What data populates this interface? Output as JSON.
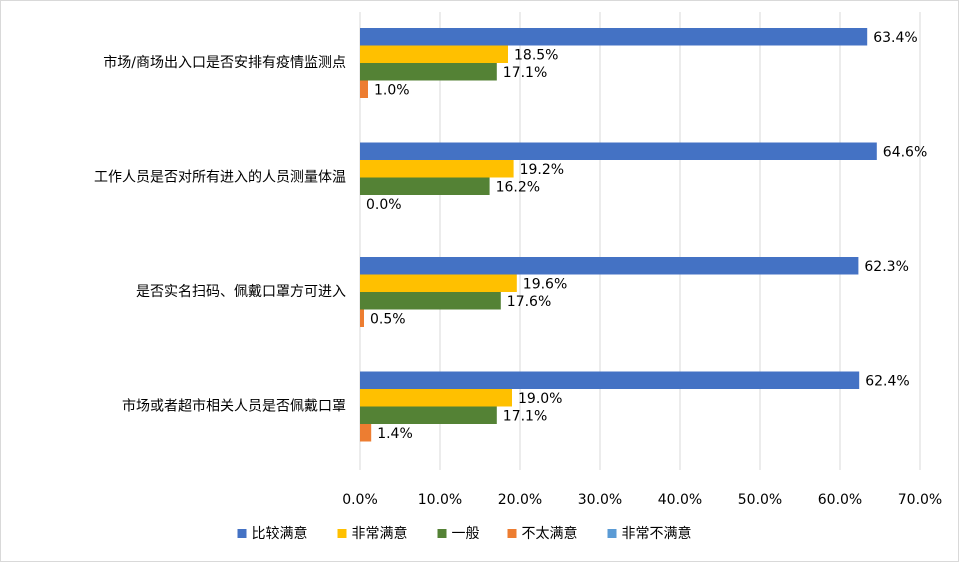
{
  "chart_data": {
    "type": "hbar",
    "categories": [
      "市场/商场出入口是否安排有疫情监测点",
      "工作人员是否对所有进入的人员测量体温",
      "是否实名扫码、佩戴口罩方可进入",
      "市场或者超市相关人员是否佩戴口罩"
    ],
    "series": [
      {
        "name": "比较满意",
        "color": "#4472c4",
        "values": [
          63.4,
          64.6,
          62.3,
          62.4
        ],
        "value_labels": [
          "63.4%",
          "64.6%",
          "62.3%",
          "62.4%"
        ]
      },
      {
        "name": "非常满意",
        "color": "#ffc000",
        "values": [
          18.5,
          19.2,
          19.6,
          19.0
        ],
        "value_labels": [
          "18.5%",
          "19.2%",
          "19.6%",
          "19.0%"
        ]
      },
      {
        "name": "一般",
        "color": "#548235",
        "values": [
          17.1,
          16.2,
          17.6,
          17.1
        ],
        "value_labels": [
          "17.1%",
          "16.2%",
          "17.6%",
          "17.1%"
        ]
      },
      {
        "name": "不太满意",
        "color": "#ed7d31",
        "values": [
          1.0,
          0.0,
          0.5,
          1.4
        ],
        "value_labels": [
          "1.0%",
          "0.0%",
          "0.5%",
          "1.4%"
        ]
      },
      {
        "name": "非常不满意",
        "color": "#5b9bd5",
        "values": [
          0,
          0,
          0,
          0
        ]
      }
    ],
    "xlim": [
      0,
      70
    ],
    "xticks": [
      {
        "value": 0,
        "label": "0.0%"
      },
      {
        "value": 10,
        "label": "10.0%"
      },
      {
        "value": 20,
        "label": "20.0%"
      },
      {
        "value": 30,
        "label": "30.0%"
      },
      {
        "value": 40,
        "label": "40.0%"
      },
      {
        "value": 50,
        "label": "50.0%"
      },
      {
        "value": 60,
        "label": "60.0%"
      },
      {
        "value": 70,
        "label": "70.0%"
      }
    ],
    "grid": true,
    "legend": "bottom"
  }
}
